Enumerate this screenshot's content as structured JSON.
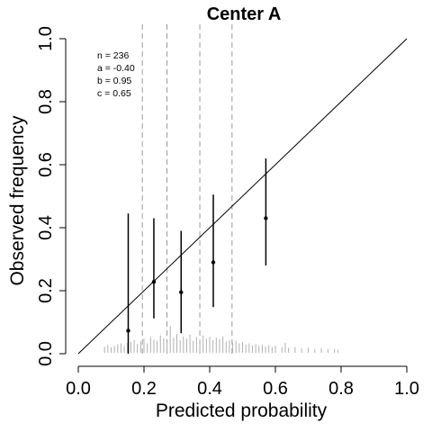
{
  "chart_data": {
    "type": "scatter",
    "title": "Center A",
    "xlabel": "Predicted probability",
    "ylabel": "Observed frequency",
    "xlim": [
      0,
      1
    ],
    "ylim": [
      0,
      1
    ],
    "x_ticks": [
      "0.0",
      "0.2",
      "0.4",
      "0.6",
      "0.8",
      "1.0"
    ],
    "y_ticks": [
      "0.0",
      "0.2",
      "0.4",
      "0.6",
      "0.8",
      "1.0"
    ],
    "reference_line": {
      "from": [
        0,
        0
      ],
      "to": [
        1,
        1
      ]
    },
    "annotations": [
      "n = 236",
      "a = -0.40",
      "b = 0.95",
      "c = 0.65"
    ],
    "group_cutpoints": [
      0.195,
      0.27,
      0.37,
      0.468
    ],
    "groups": [
      {
        "x": 0.152,
        "y": 0.073,
        "lower": 0.0,
        "upper": 0.445
      },
      {
        "x": 0.23,
        "y": 0.228,
        "lower": 0.112,
        "upper": 0.43
      },
      {
        "x": 0.313,
        "y": 0.195,
        "lower": 0.065,
        "upper": 0.39
      },
      {
        "x": 0.411,
        "y": 0.29,
        "lower": 0.148,
        "upper": 0.505
      },
      {
        "x": 0.571,
        "y": 0.43,
        "lower": 0.28,
        "upper": 0.62
      }
    ],
    "rug": [
      [
        0.08,
        0.02
      ],
      [
        0.09,
        0.025
      ],
      [
        0.1,
        0.018
      ],
      [
        0.11,
        0.022
      ],
      [
        0.12,
        0.027
      ],
      [
        0.13,
        0.03
      ],
      [
        0.14,
        0.022
      ],
      [
        0.15,
        0.032
      ],
      [
        0.16,
        0.035
      ],
      [
        0.17,
        0.04
      ],
      [
        0.18,
        0.028
      ],
      [
        0.19,
        0.036
      ],
      [
        0.2,
        0.045
      ],
      [
        0.21,
        0.03
      ],
      [
        0.22,
        0.05
      ],
      [
        0.23,
        0.042
      ],
      [
        0.24,
        0.038
      ],
      [
        0.25,
        0.055
      ],
      [
        0.26,
        0.046
      ],
      [
        0.27,
        0.035
      ],
      [
        0.28,
        0.085
      ],
      [
        0.29,
        0.048
      ],
      [
        0.3,
        0.06
      ],
      [
        0.31,
        0.04
      ],
      [
        0.32,
        0.052
      ],
      [
        0.33,
        0.045
      ],
      [
        0.34,
        0.058
      ],
      [
        0.35,
        0.038
      ],
      [
        0.36,
        0.05
      ],
      [
        0.37,
        0.042
      ],
      [
        0.38,
        0.055
      ],
      [
        0.39,
        0.045
      ],
      [
        0.4,
        0.05
      ],
      [
        0.41,
        0.04
      ],
      [
        0.42,
        0.048
      ],
      [
        0.43,
        0.044
      ],
      [
        0.44,
        0.052
      ],
      [
        0.45,
        0.036
      ],
      [
        0.46,
        0.04
      ],
      [
        0.47,
        0.032
      ],
      [
        0.48,
        0.038
      ],
      [
        0.49,
        0.03
      ],
      [
        0.5,
        0.034
      ],
      [
        0.51,
        0.026
      ],
      [
        0.52,
        0.03
      ],
      [
        0.53,
        0.024
      ],
      [
        0.54,
        0.028
      ],
      [
        0.55,
        0.022
      ],
      [
        0.56,
        0.026
      ],
      [
        0.57,
        0.02
      ],
      [
        0.58,
        0.024
      ],
      [
        0.59,
        0.018
      ],
      [
        0.6,
        0.022
      ],
      [
        0.62,
        0.018
      ],
      [
        0.63,
        0.032
      ],
      [
        0.64,
        0.016
      ],
      [
        0.66,
        0.018
      ],
      [
        0.68,
        0.014
      ],
      [
        0.7,
        0.016
      ],
      [
        0.72,
        0.012
      ],
      [
        0.74,
        0.014
      ],
      [
        0.76,
        0.012
      ],
      [
        0.78,
        0.012
      ],
      [
        0.79,
        0.01
      ]
    ]
  }
}
